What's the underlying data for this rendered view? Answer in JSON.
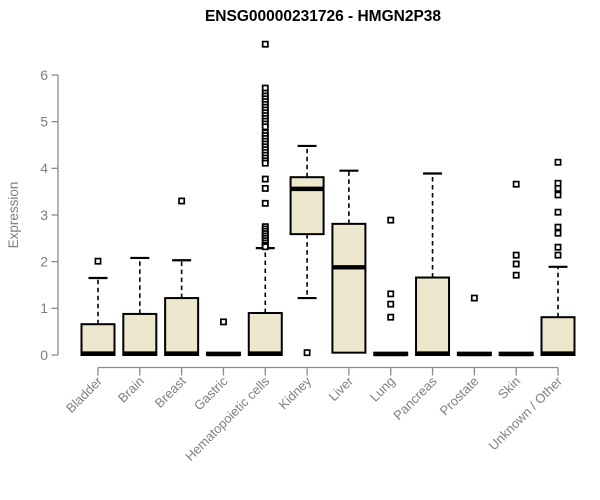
{
  "title": "ENSG00000231726 - HMGN2P38",
  "chart_data": {
    "type": "boxplot",
    "title": "ENSG00000231726 - HMGN2P38",
    "xlabel": "",
    "ylabel": "Expression",
    "ylim": [
      0,
      6
    ],
    "yticks": [
      0,
      1,
      2,
      3,
      4,
      5,
      6
    ],
    "grid": false,
    "legend": "none",
    "colors": {
      "box_fill": "#EDE8CD",
      "box_stroke": "#000000",
      "median": "#000000",
      "axis": "#8B8B8B",
      "tick_text": "#7F7F7F",
      "title_text": "#000000",
      "background": "#FFFFFF"
    },
    "categories": [
      "Bladder",
      "Brain",
      "Breast",
      "Gastric",
      "Hematopoietic cells",
      "Kidney",
      "Liver",
      "Lung",
      "Pancreas",
      "Prostate",
      "Skin",
      "Unknown / Other"
    ],
    "series": [
      {
        "category": "Bladder",
        "whisker_low": 0,
        "q1": 0,
        "median": 0.03,
        "q3": 0.66,
        "whisker_high": 1.65,
        "outliers": [
          2.01
        ]
      },
      {
        "category": "Brain",
        "whisker_low": 0,
        "q1": 0,
        "median": 0.03,
        "q3": 0.88,
        "whisker_high": 2.08,
        "outliers": []
      },
      {
        "category": "Breast",
        "whisker_low": 0,
        "q1": 0,
        "median": 0.03,
        "q3": 1.22,
        "whisker_high": 2.03,
        "outliers": [
          3.3
        ]
      },
      {
        "category": "Gastric",
        "whisker_low": 0,
        "q1": 0,
        "median": 0.02,
        "q3": 0.05,
        "whisker_high": 0.05,
        "outliers": [
          0.71
        ]
      },
      {
        "category": "Hematopoietic cells",
        "whisker_low": 0,
        "q1": 0,
        "median": 0.03,
        "q3": 0.9,
        "whisker_high": 2.29,
        "outliers": [
          6.66,
          5.72,
          5.61,
          5.55,
          5.49,
          5.43,
          5.37,
          5.31,
          5.25,
          5.19,
          5.13,
          5.07,
          5.01,
          4.95,
          4.89,
          4.76,
          4.7,
          4.64,
          4.58,
          4.52,
          4.46,
          4.4,
          4.34,
          4.28,
          4.22,
          4.16,
          4.11,
          3.77,
          3.57,
          3.25,
          2.75,
          2.7,
          2.65,
          2.6,
          2.55,
          2.5,
          2.45,
          2.4,
          2.35,
          2.32
        ]
      },
      {
        "category": "Kidney",
        "whisker_low": 1.22,
        "q1": 2.59,
        "median": 3.56,
        "q3": 3.81,
        "whisker_high": 4.48,
        "outliers": [
          0.05
        ]
      },
      {
        "category": "Liver",
        "whisker_low": 0.05,
        "q1": 0.05,
        "median": 1.88,
        "q3": 2.81,
        "whisker_high": 3.95,
        "outliers": []
      },
      {
        "category": "Lung",
        "whisker_low": 0,
        "q1": 0,
        "median": 0.02,
        "q3": 0.05,
        "whisker_high": 0.05,
        "outliers": [
          2.89,
          1.31,
          1.09,
          0.81
        ]
      },
      {
        "category": "Pancreas",
        "whisker_low": 0,
        "q1": 0,
        "median": 0.03,
        "q3": 1.66,
        "whisker_high": 3.89,
        "outliers": []
      },
      {
        "category": "Prostate",
        "whisker_low": 0,
        "q1": 0,
        "median": 0.02,
        "q3": 0.05,
        "whisker_high": 0.05,
        "outliers": [
          1.22
        ]
      },
      {
        "category": "Skin",
        "whisker_low": 0,
        "q1": 0,
        "median": 0.02,
        "q3": 0.05,
        "whisker_high": 0.05,
        "outliers": [
          3.66,
          2.14,
          1.95,
          1.71
        ]
      },
      {
        "category": "Unknown / Other",
        "whisker_low": 0,
        "q1": 0,
        "median": 0.03,
        "q3": 0.81,
        "whisker_high": 1.89,
        "outliers": [
          4.13,
          3.68,
          3.57,
          3.43,
          3.06,
          2.74,
          2.61,
          2.31,
          2.14
        ]
      }
    ]
  }
}
